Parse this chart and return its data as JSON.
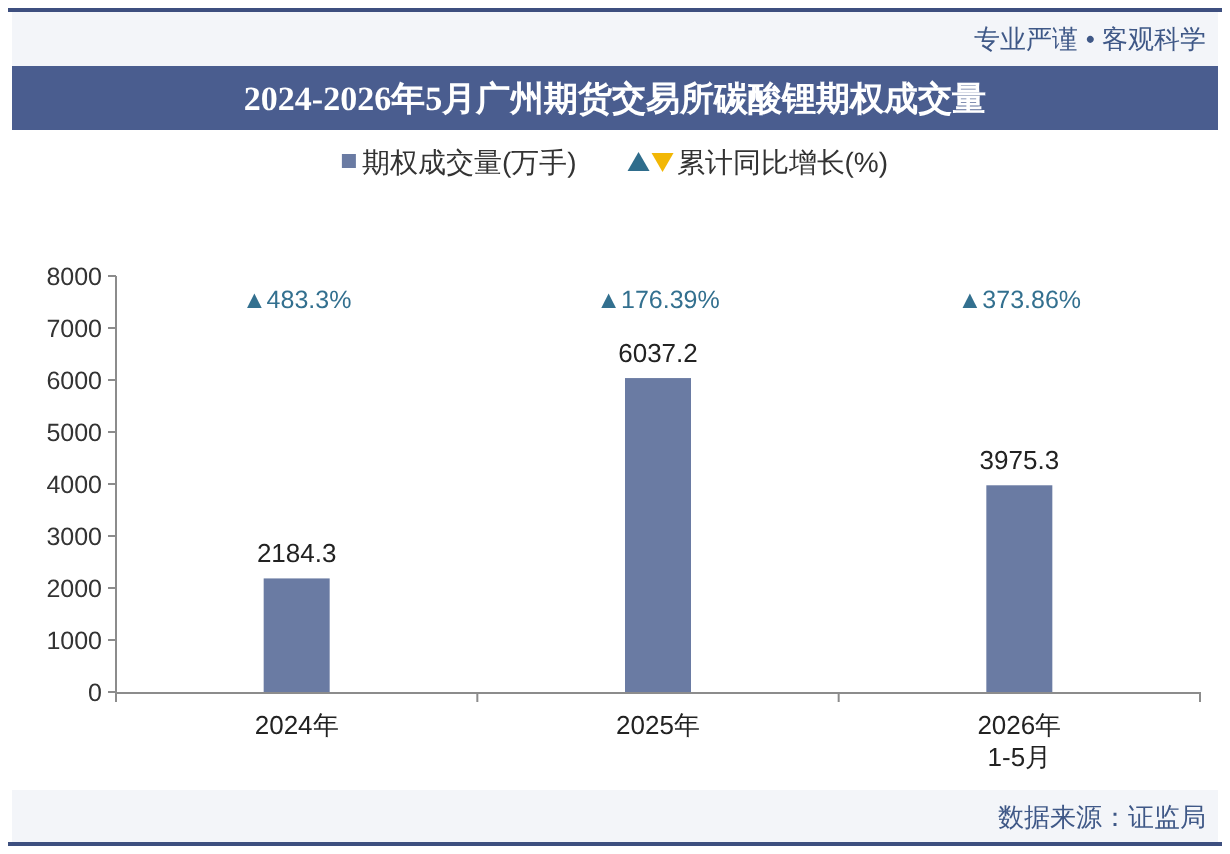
{
  "chart_data": {
    "type": "bar",
    "title": "2024-2026年5月广州期货交易所碳酸锂期权成交量",
    "categories": [
      "2024年",
      "2025年",
      "2026年\n1-5月"
    ],
    "series": [
      {
        "name": "期权成交量(万手)",
        "color": "#6a7ba3",
        "values": [
          2184.3,
          6037.2,
          3975.3
        ]
      }
    ],
    "ylim": [
      0,
      8000
    ],
    "yticks": [
      0,
      1000,
      2000,
      3000,
      4000,
      5000,
      6000,
      7000,
      8000
    ],
    "data_labels": true,
    "grid": false,
    "legend": "top",
    "annotations": [
      "专业严谨 • 客观科学",
      "累计同比增长(%)",
      "▲483.3%",
      "▲176.39%",
      "▲373.86%",
      "数据来源：证监局"
    ]
  }
}
